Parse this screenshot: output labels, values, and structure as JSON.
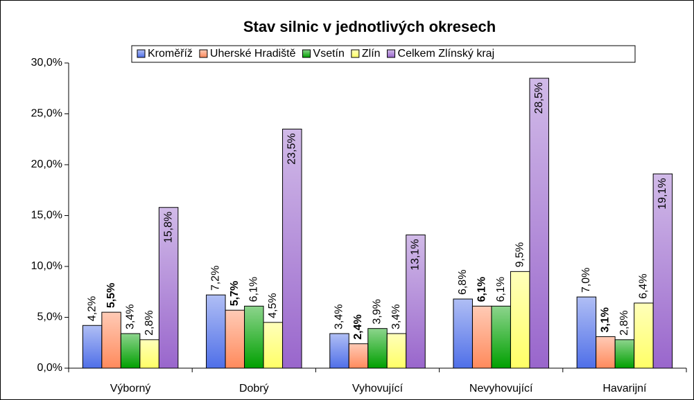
{
  "chart_data": {
    "type": "bar",
    "title": "Stav silnic v jednotlivých okresech",
    "categories": [
      "Výborný",
      "Dobrý",
      "Vyhovující",
      "Nevyhovující",
      "Havarijní"
    ],
    "series": [
      {
        "name": "Kroměříž",
        "color": "#4f6fe8",
        "values": [
          4.2,
          7.2,
          3.4,
          6.8,
          7.0
        ],
        "value_labels": [
          "4,2%",
          "7,2%",
          "3,4%",
          "6,8%",
          "7,0%"
        ]
      },
      {
        "name": "Uherské Hradiště",
        "color": "#ff8a5c",
        "bold_labels": true,
        "values": [
          5.5,
          5.7,
          2.4,
          6.1,
          3.1
        ],
        "value_labels": [
          "5,5%",
          "5,7%",
          "2,4%",
          "6,1%",
          "3,1%"
        ]
      },
      {
        "name": "Vsetín",
        "color": "#00a000",
        "values": [
          3.4,
          6.1,
          3.9,
          6.1,
          2.8
        ],
        "value_labels": [
          "3,4%",
          "6,1%",
          "3,9%",
          "6,1%",
          "2,8%"
        ]
      },
      {
        "name": "Zlín",
        "color": "#ffff66",
        "values": [
          2.8,
          4.5,
          3.4,
          9.5,
          6.4
        ],
        "value_labels": [
          "2,8%",
          "4,5%",
          "3,4%",
          "9,5%",
          "6,4%"
        ]
      },
      {
        "name": "Celkem Zlínský kraj",
        "color": "#9966cc",
        "labels_inside": true,
        "values": [
          15.8,
          23.5,
          13.1,
          28.5,
          19.1
        ],
        "value_labels": [
          "15,8%",
          "23,5%",
          "13,1%",
          "28,5%",
          "19,1%"
        ]
      }
    ],
    "ylim": [
      0,
      30
    ],
    "yticks": [
      {
        "value": 0,
        "label": "0,0%"
      },
      {
        "value": 5,
        "label": "5,0%"
      },
      {
        "value": 10,
        "label": "10,0%"
      },
      {
        "value": 15,
        "label": "15,0%"
      },
      {
        "value": 20,
        "label": "20,0%"
      },
      {
        "value": 25,
        "label": "25,0%"
      },
      {
        "value": 30,
        "label": "30,0%"
      }
    ],
    "legend": "top"
  }
}
